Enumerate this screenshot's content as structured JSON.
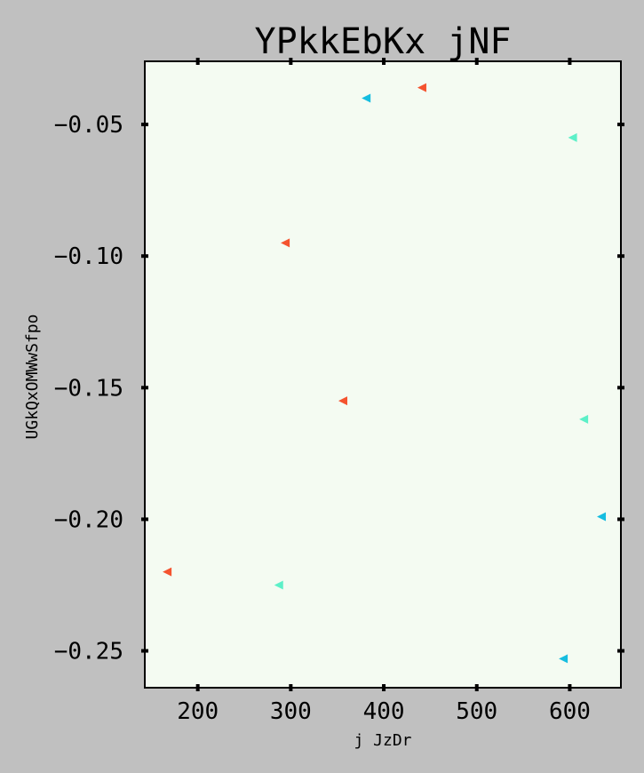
{
  "chart_data": {
    "type": "scatter",
    "title": "YPkkEbKx  jNF",
    "xlabel": "j JzDr",
    "ylabel": "UGkQxOMWwSfpo",
    "xlim": [
      143,
      655
    ],
    "ylim": [
      -0.264,
      -0.026
    ],
    "x_ticks": [
      {
        "value": 200,
        "label": "200"
      },
      {
        "value": 300,
        "label": "300"
      },
      {
        "value": 400,
        "label": "400"
      },
      {
        "value": 500,
        "label": "500"
      },
      {
        "value": 600,
        "label": "600"
      }
    ],
    "y_ticks": [
      {
        "value": -0.05,
        "label": "−0.05"
      },
      {
        "value": -0.1,
        "label": "−0.10"
      },
      {
        "value": -0.15,
        "label": "−0.15"
      },
      {
        "value": -0.2,
        "label": "−0.20"
      },
      {
        "value": -0.25,
        "label": "−0.25"
      }
    ],
    "grid": false,
    "marker": "triangle-left",
    "plot_background": "#f4fbf2",
    "series": [
      {
        "color": "#f4532f",
        "points": [
          [
            441,
            -0.036
          ],
          [
            294,
            -0.095
          ],
          [
            356,
            -0.155
          ],
          [
            167,
            -0.22
          ]
        ]
      },
      {
        "color": "#15bde0",
        "points": [
          [
            381,
            -0.04
          ],
          [
            634,
            -0.199
          ],
          [
            593,
            -0.253
          ]
        ]
      },
      {
        "color": "#5cf0c8",
        "points": [
          [
            603,
            -0.055
          ],
          [
            615,
            -0.162
          ],
          [
            287,
            -0.225
          ]
        ]
      }
    ]
  }
}
